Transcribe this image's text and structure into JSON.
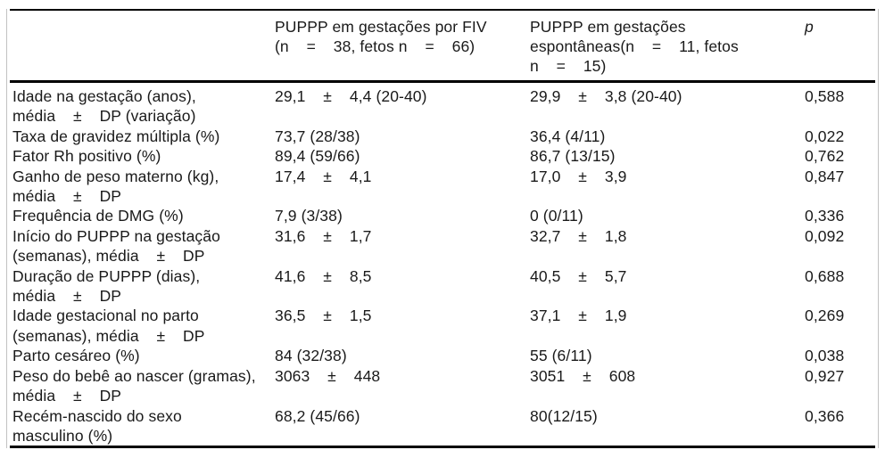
{
  "table": {
    "colors": {
      "rule_black": "#000000",
      "frame_gray": "#c2c2c2",
      "text": "#1a1a1a",
      "background": "#ffffff"
    },
    "header": {
      "col_label": "",
      "col_fiv": "PUPPP em gestações por FIV\n(n    =    38, fetos n    =    66)",
      "col_spontaneous": "PUPPP em gestações\nespontâneas(n    =    11, fetos\nn    =    15)",
      "col_p": "p"
    },
    "rows": [
      {
        "label": "Idade na gestação (anos),\nmédia    ±    DP (variação)",
        "fiv": "29,1    ±    4,4 (20-40)",
        "spontaneous": "29,9    ±    3,8 (20-40)",
        "p": "0,588"
      },
      {
        "label": "Taxa de gravidez múltipla (%)",
        "fiv": "73,7 (28/38)",
        "spontaneous": "36,4 (4/11)",
        "p": "0,022"
      },
      {
        "label": "Fator Rh positivo (%)",
        "fiv": "89,4 (59/66)",
        "spontaneous": "86,7 (13/15)",
        "p": "0,762"
      },
      {
        "label": "Ganho de peso materno (kg),\nmédia    ±    DP",
        "fiv": "17,4    ±    4,1",
        "spontaneous": "17,0    ±    3,9",
        "p": "0,847"
      },
      {
        "label": "Frequência de DMG (%)",
        "fiv": "7,9 (3/38)",
        "spontaneous": "0 (0/11)",
        "p": "0,336"
      },
      {
        "label": "Início do PUPPP na gestação\n(semanas), média    ±    DP",
        "fiv": "31,6    ±    1,7",
        "spontaneous": "32,7    ±    1,8",
        "p": "0,092"
      },
      {
        "label": "Duração de PUPPP (dias),\nmédia    ±    DP",
        "fiv": "41,6    ±    8,5",
        "spontaneous": "40,5    ±    5,7",
        "p": "0,688"
      },
      {
        "label": "Idade gestacional no parto\n(semanas), média    ±    DP",
        "fiv": "36,5    ±    1,5",
        "spontaneous": "37,1    ±    1,9",
        "p": "0,269"
      },
      {
        "label": "Parto cesáreo (%)",
        "fiv": "84 (32/38)",
        "spontaneous": "55 (6/11)",
        "p": "0,038"
      },
      {
        "label": "Peso do bebê ao nascer (gramas),\nmédia    ±    DP",
        "fiv": "3063    ±    448",
        "spontaneous": "3051    ±    608",
        "p": "0,927"
      },
      {
        "label": "Recém-nascido do sexo\nmasculino (%)",
        "fiv": "68,2 (45/66)",
        "spontaneous": "80(12/15)",
        "p": "0,366"
      }
    ]
  }
}
